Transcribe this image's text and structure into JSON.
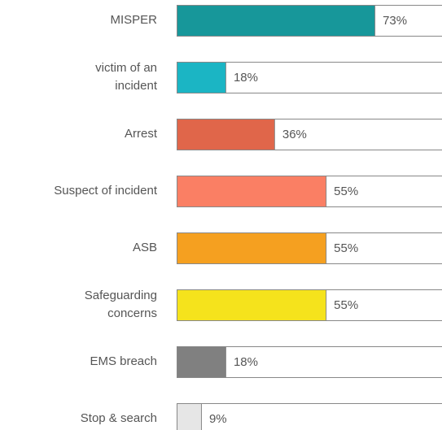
{
  "chart_data": {
    "type": "bar",
    "orientation": "horizontal",
    "categories": [
      "MISPER",
      "victim of an\nincident",
      "Arrest",
      "Suspect of incident",
      "ASB",
      "Safeguarding\nconcerns",
      "EMS breach",
      "Stop & search"
    ],
    "values": [
      73,
      18,
      36,
      55,
      55,
      55,
      18,
      9
    ],
    "value_labels": [
      "73%",
      "18%",
      "36%",
      "55%",
      "55%",
      "55%",
      "18%",
      "9%"
    ],
    "colors": [
      "#17979a",
      "#1bb5c4",
      "#e0664a",
      "#fa7f64",
      "#f5a020",
      "#f5e31c",
      "#808080",
      "#e6e6e6"
    ],
    "xlim": [
      0,
      100
    ]
  }
}
